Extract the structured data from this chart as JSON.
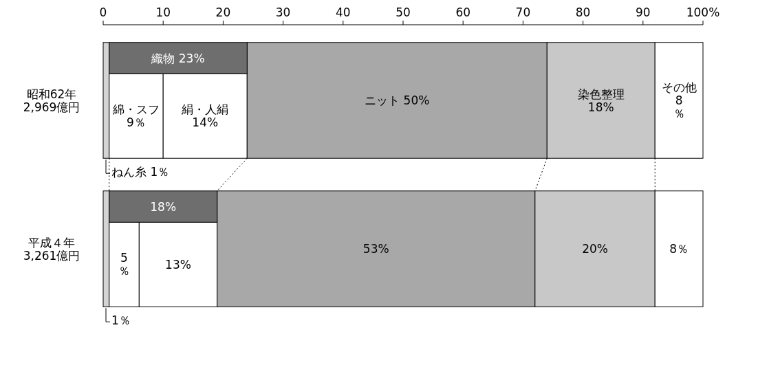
{
  "chart_data": {
    "type": "bar",
    "orientation": "horizontal",
    "stacked": true,
    "categories": [
      "昭和62年\n2,969億円",
      "平成４年\n3,261億円"
    ],
    "xlim": [
      0,
      100
    ],
    "xticks": [
      0,
      10,
      20,
      30,
      40,
      50,
      60,
      70,
      80,
      90,
      {
        "value": 100,
        "label": "100%"
      }
    ],
    "grid": false,
    "series": [
      {
        "color": "#d4d4d4",
        "values": [
          1,
          1
        ],
        "value_labels": [
          "ねん糸  1％",
          "1％"
        ]
      },
      {
        "color": "#ffffff",
        "values": [
          9,
          5
        ],
        "value_labels": [
          "綿・スフ\n9％",
          "5\n％"
        ]
      },
      {
        "color": "#ffffff",
        "values": [
          14,
          13
        ],
        "value_labels": [
          "絹・人絹\n14%",
          "13%"
        ]
      },
      {
        "color": "#a8a8a8",
        "values": [
          50,
          53
        ],
        "value_labels": [
          "ニット  50%",
          "53%"
        ]
      },
      {
        "color": "#c8c8c8",
        "values": [
          18,
          20
        ],
        "value_labels": [
          "染色整理\n18%",
          "20%"
        ]
      },
      {
        "color": "#ffffff",
        "values": [
          8,
          8
        ],
        "value_labels": [
          "その他\n8\n％",
          "8％"
        ]
      }
    ],
    "annotations": [
      "織物  23%",
      "18%"
    ]
  }
}
